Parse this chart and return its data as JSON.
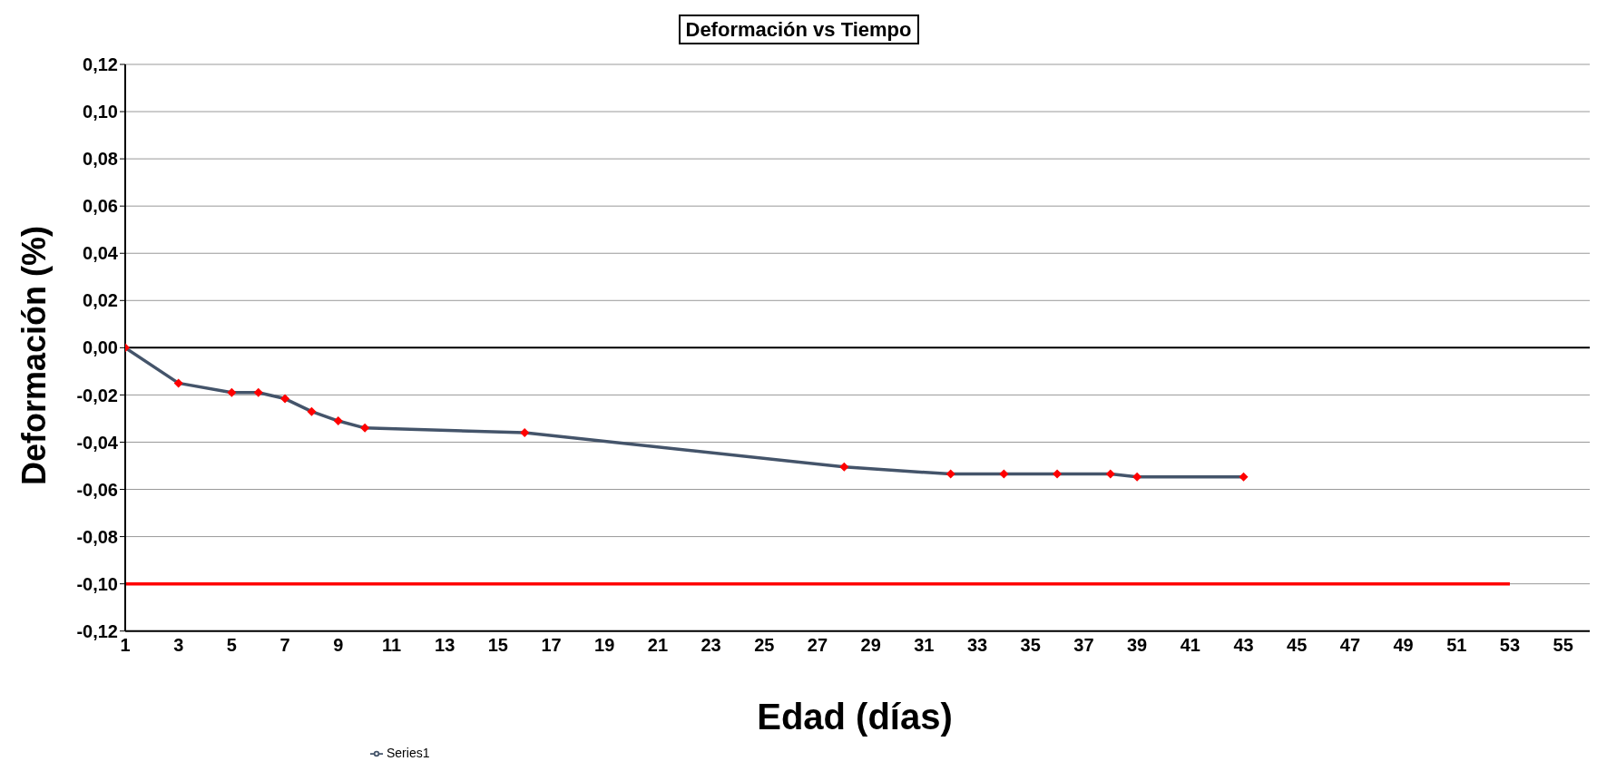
{
  "chart_data": {
    "type": "line",
    "title": "Deformación vs Tiempo",
    "xlabel": "Edad (días)",
    "ylabel": "Deformación  (%)",
    "xlim": [
      1,
      56
    ],
    "xticks": [
      1,
      3,
      5,
      7,
      9,
      11,
      13,
      15,
      17,
      19,
      21,
      23,
      25,
      27,
      29,
      31,
      33,
      35,
      37,
      39,
      41,
      43,
      45,
      47,
      49,
      51,
      53,
      55
    ],
    "ylim": [
      -0.12,
      0.12
    ],
    "yticks": [
      {
        "value": -0.12,
        "label": "-0,12"
      },
      {
        "value": -0.1,
        "label": "-0,10"
      },
      {
        "value": -0.08,
        "label": "-0,08"
      },
      {
        "value": -0.06,
        "label": "-0,06"
      },
      {
        "value": -0.04,
        "label": "-0,04"
      },
      {
        "value": -0.02,
        "label": "-0,02"
      },
      {
        "value": 0,
        "label": "0,00"
      },
      {
        "value": 0.02,
        "label": "0,02"
      },
      {
        "value": 0.04,
        "label": "0,04"
      },
      {
        "value": 0.06,
        "label": "0,06"
      },
      {
        "value": 0.08,
        "label": "0,08"
      },
      {
        "value": 0.1,
        "label": "0,10"
      },
      {
        "value": 0.12,
        "label": "0,12"
      }
    ],
    "grid": "y",
    "legend": "bottom",
    "series": [
      {
        "name": "Series1",
        "color": "#44546a",
        "marker": "diamond",
        "colors": [
          "#ff0000",
          "#ff0000",
          "#ff0000",
          "#ff0000",
          "#ff0000",
          "#ff0000",
          "#ff0000",
          "#ff0000",
          "#ff0000",
          "#ff0000",
          "#ff0000",
          "#ff0000",
          "#ff0000",
          "#ff0000",
          "#ff0000",
          "#ff0000"
        ],
        "x": [
          1,
          3,
          5,
          6,
          7,
          8,
          9,
          10,
          16,
          28,
          32,
          34,
          36,
          38,
          39,
          43
        ],
        "values": [
          0,
          -0.015,
          -0.019,
          -0.019,
          -0.0216,
          -0.027,
          -0.031,
          -0.034,
          -0.036,
          -0.0505,
          -0.0535,
          -0.0535,
          -0.0535,
          -0.0535,
          -0.0547,
          -0.0547
        ]
      },
      {
        "color": "#ff0000",
        "marker": "none",
        "x": [
          1,
          53
        ],
        "values": [
          -0.1,
          -0.1
        ]
      }
    ]
  }
}
